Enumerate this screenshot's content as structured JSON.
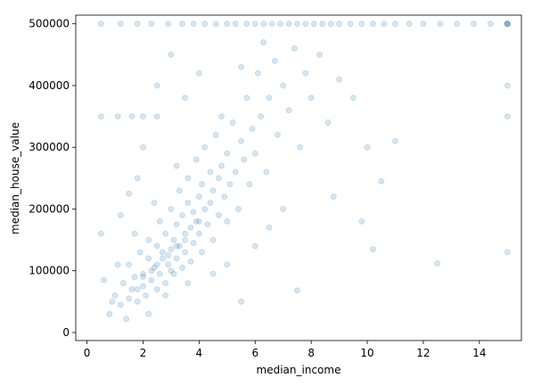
{
  "chart_data": {
    "type": "scatter",
    "xlabel": "median_income",
    "ylabel": "median_house_value",
    "color": "#1f77b4",
    "alpha": 0.18,
    "xlim": [
      -0.4,
      15.5
    ],
    "ylim": [
      -13000,
      514000
    ],
    "xticks": [
      0,
      2,
      4,
      6,
      8,
      10,
      12,
      14
    ],
    "yticks": [
      0,
      100000,
      200000,
      300000,
      400000,
      500000
    ],
    "x": [
      0.5,
      1.2,
      1.8,
      2.3,
      2.9,
      3.4,
      3.8,
      4.2,
      4.6,
      5.0,
      5.3,
      5.7,
      6.0,
      6.3,
      6.6,
      6.9,
      7.2,
      7.5,
      7.8,
      8.1,
      8.4,
      8.7,
      9.0,
      9.4,
      9.8,
      10.2,
      10.6,
      11.0,
      11.5,
      12.0,
      12.6,
      13.2,
      13.8,
      14.4,
      15,
      15,
      15,
      15,
      0.5,
      1.1,
      1.6,
      2.0,
      2.5,
      1.0,
      1.2,
      1.3,
      1.5,
      1.5,
      1.6,
      1.7,
      1.8,
      1.9,
      2.0,
      2.0,
      2.1,
      2.2,
      2.2,
      2.3,
      2.4,
      2.5,
      2.5,
      2.6,
      2.6,
      2.7,
      2.8,
      2.8,
      2.9,
      3.0,
      3.0,
      3.1,
      3.1,
      3.2,
      3.2,
      3.3,
      3.3,
      3.4,
      3.4,
      3.5,
      3.5,
      3.6,
      3.6,
      3.7,
      3.7,
      3.8,
      3.8,
      3.9,
      3.9,
      4.0,
      4.0,
      4.1,
      4.1,
      4.2,
      4.2,
      4.3,
      4.4,
      4.4,
      4.5,
      4.5,
      4.6,
      4.7,
      4.7,
      4.8,
      4.9,
      5.0,
      5.0,
      5.1,
      5.2,
      5.3,
      5.4,
      5.5,
      5.6,
      5.7,
      5.8,
      5.9,
      6.0,
      6.1,
      6.2,
      6.4,
      6.5,
      6.7,
      6.8,
      7.0,
      7.2,
      7.4,
      7.6,
      7.8,
      8.0,
      8.3,
      8.6,
      9.0,
      9.5,
      10.0,
      10.5,
      11.0,
      12.5,
      15,
      15,
      15,
      10.2,
      9.8,
      8.8,
      7.5,
      5.5,
      0.5,
      0.6,
      0.8,
      1.4,
      2.0,
      1.8,
      2.5,
      3.0,
      3.5,
      4.0,
      1.2,
      1.5,
      2.2,
      2.8,
      3.6,
      4.5,
      5.0,
      6.0,
      6.5,
      7.0,
      1.1,
      0.9,
      1.7,
      2.4,
      3.2,
      4.8,
      5.5,
      6.3,
      2.5,
      3.0,
      3.5,
      2.0,
      1.8,
      2.7,
      3.2,
      4.0,
      2.3,
      2.9
    ],
    "values": [
      500001,
      500001,
      500001,
      500001,
      500001,
      500001,
      500001,
      500001,
      500001,
      500001,
      500001,
      500001,
      500001,
      500001,
      500001,
      500001,
      500001,
      500001,
      500001,
      500001,
      500001,
      500001,
      500001,
      500001,
      500001,
      500001,
      500001,
      500001,
      500001,
      500001,
      500001,
      500001,
      500001,
      500001,
      500001,
      500001,
      500001,
      500001,
      350000,
      350000,
      350000,
      350000,
      350000,
      60000,
      45000,
      80000,
      55000,
      110000,
      70000,
      90000,
      50000,
      130000,
      75000,
      95000,
      60000,
      120000,
      150000,
      85000,
      105000,
      70000,
      140000,
      180000,
      95000,
      120000,
      160000,
      80000,
      110000,
      135000,
      200000,
      95000,
      150000,
      175000,
      120000,
      230000,
      140000,
      105000,
      190000,
      160000,
      130000,
      210000,
      250000,
      170000,
      115000,
      195000,
      145000,
      280000,
      180000,
      160000,
      220000,
      130000,
      240000,
      200000,
      300000,
      175000,
      260000,
      210000,
      150000,
      230000,
      320000,
      190000,
      250000,
      270000,
      220000,
      290000,
      180000,
      240000,
      340000,
      260000,
      200000,
      310000,
      280000,
      380000,
      240000,
      330000,
      290000,
      420000,
      350000,
      260000,
      380000,
      440000,
      320000,
      400000,
      360000,
      460000,
      300000,
      420000,
      380000,
      450000,
      340000,
      410000,
      380000,
      300000,
      245000,
      310000,
      112000,
      130000,
      350000,
      400000,
      135000,
      180000,
      220000,
      68000,
      50000,
      160000,
      85000,
      30000,
      22000,
      300000,
      250000,
      400000,
      450000,
      380000,
      420000,
      190000,
      225000,
      30000,
      60000,
      80000,
      95000,
      110000,
      140000,
      170000,
      200000,
      110000,
      50000,
      160000,
      210000,
      270000,
      350000,
      430000,
      470000,
      110000,
      100000,
      150000,
      90000,
      70000,
      130000,
      140000,
      180000,
      100000,
      125000
    ]
  }
}
